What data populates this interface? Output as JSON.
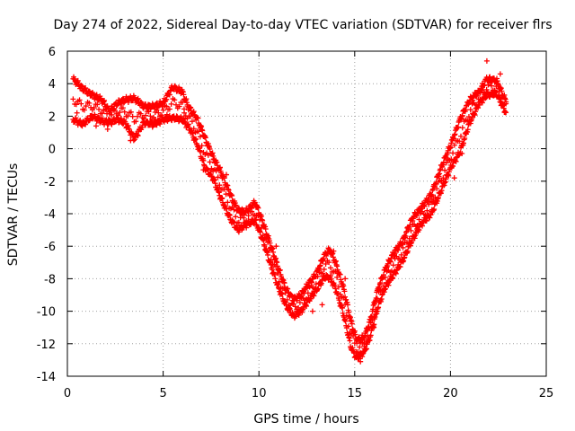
{
  "chart_data": {
    "type": "scatter",
    "title": "Day 274 of 2022, Sidereal Day-to-day VTEC variation (SDTVAR) for receiver flrs",
    "xlabel": "GPS time / hours",
    "ylabel": "SDTVAR / TECUs",
    "xlim": [
      0,
      25
    ],
    "ylim": [
      -14,
      6
    ],
    "xticks": [
      0,
      5,
      10,
      15,
      20,
      25
    ],
    "yticks": [
      -14,
      -12,
      -10,
      -8,
      -6,
      -4,
      -2,
      0,
      2,
      4,
      6
    ],
    "grid": true,
    "marker": "+",
    "series": [
      {
        "name": "SDTVAR",
        "color": "#ff0000",
        "upper": [
          [
            0.3,
            4.3
          ],
          [
            0.8,
            3.7
          ],
          [
            1.3,
            3.3
          ],
          [
            1.8,
            3.0
          ],
          [
            2.2,
            2.3
          ],
          [
            2.6,
            2.8
          ],
          [
            3.0,
            3.0
          ],
          [
            3.5,
            3.1
          ],
          [
            4.0,
            2.6
          ],
          [
            4.5,
            2.6
          ],
          [
            5.0,
            2.8
          ],
          [
            5.5,
            3.8
          ],
          [
            6.0,
            3.5
          ],
          [
            6.3,
            2.6
          ],
          [
            6.8,
            1.8
          ],
          [
            7.2,
            0.6
          ],
          [
            7.6,
            -0.5
          ],
          [
            8.0,
            -1.4
          ],
          [
            8.5,
            -2.8
          ],
          [
            8.9,
            -3.8
          ],
          [
            9.3,
            -3.9
          ],
          [
            9.8,
            -3.3
          ],
          [
            10.2,
            -4.5
          ],
          [
            10.6,
            -5.9
          ],
          [
            11.0,
            -7.3
          ],
          [
            11.4,
            -8.6
          ],
          [
            11.8,
            -9.3
          ],
          [
            12.2,
            -9.0
          ],
          [
            12.6,
            -8.3
          ],
          [
            13.0,
            -7.7
          ],
          [
            13.4,
            -6.6
          ],
          [
            13.7,
            -6.2
          ],
          [
            14.0,
            -7.0
          ],
          [
            14.4,
            -8.5
          ],
          [
            14.8,
            -10.6
          ],
          [
            15.1,
            -11.8
          ],
          [
            15.5,
            -11.6
          ],
          [
            15.8,
            -10.6
          ],
          [
            16.2,
            -8.7
          ],
          [
            16.6,
            -7.4
          ],
          [
            17.0,
            -6.5
          ],
          [
            17.5,
            -5.7
          ],
          [
            18.0,
            -4.3
          ],
          [
            18.5,
            -3.6
          ],
          [
            19.0,
            -2.8
          ],
          [
            19.5,
            -1.2
          ],
          [
            20.0,
            0.2
          ],
          [
            20.5,
            1.8
          ],
          [
            21.0,
            3.0
          ],
          [
            21.5,
            3.5
          ],
          [
            21.9,
            4.3
          ],
          [
            22.4,
            4.2
          ],
          [
            22.9,
            2.9
          ]
        ],
        "lower": [
          [
            0.3,
            1.8
          ],
          [
            0.8,
            1.5
          ],
          [
            1.3,
            2.0
          ],
          [
            1.8,
            1.7
          ],
          [
            2.2,
            1.6
          ],
          [
            2.6,
            1.8
          ],
          [
            3.0,
            1.6
          ],
          [
            3.5,
            0.6
          ],
          [
            4.0,
            1.6
          ],
          [
            4.5,
            1.5
          ],
          [
            5.0,
            1.8
          ],
          [
            5.5,
            1.9
          ],
          [
            6.0,
            1.8
          ],
          [
            6.4,
            1.2
          ],
          [
            6.8,
            0.2
          ],
          [
            7.2,
            -1.2
          ],
          [
            7.6,
            -1.8
          ],
          [
            8.0,
            -3.0
          ],
          [
            8.5,
            -4.3
          ],
          [
            8.9,
            -5.0
          ],
          [
            9.3,
            -4.7
          ],
          [
            9.8,
            -4.4
          ],
          [
            10.2,
            -5.6
          ],
          [
            10.6,
            -7.1
          ],
          [
            11.0,
            -8.5
          ],
          [
            11.4,
            -9.6
          ],
          [
            11.8,
            -10.3
          ],
          [
            12.2,
            -10.0
          ],
          [
            12.6,
            -9.3
          ],
          [
            13.0,
            -8.7
          ],
          [
            13.4,
            -7.9
          ],
          [
            13.7,
            -7.9
          ],
          [
            14.0,
            -8.6
          ],
          [
            14.4,
            -10.1
          ],
          [
            14.8,
            -12.2
          ],
          [
            15.1,
            -12.9
          ],
          [
            15.5,
            -12.5
          ],
          [
            15.8,
            -11.6
          ],
          [
            16.2,
            -9.8
          ],
          [
            16.6,
            -8.5
          ],
          [
            17.0,
            -7.8
          ],
          [
            17.5,
            -6.9
          ],
          [
            18.0,
            -5.6
          ],
          [
            18.5,
            -4.6
          ],
          [
            19.0,
            -4.0
          ],
          [
            19.5,
            -2.6
          ],
          [
            20.0,
            -1.2
          ],
          [
            20.5,
            -0.2
          ],
          [
            21.0,
            1.6
          ],
          [
            21.5,
            2.8
          ],
          [
            21.9,
            3.3
          ],
          [
            22.4,
            3.4
          ],
          [
            22.9,
            2.2
          ]
        ],
        "outliers": [
          [
            0.5,
            2.2
          ],
          [
            1.5,
            1.4
          ],
          [
            2.1,
            1.2
          ],
          [
            3.3,
            0.5
          ],
          [
            4.6,
            1.8
          ],
          [
            5.2,
            2.1
          ],
          [
            6.1,
            2.2
          ],
          [
            7.1,
            -1.3
          ],
          [
            8.3,
            -1.6
          ],
          [
            9.9,
            -3.6
          ],
          [
            10.9,
            -6.0
          ],
          [
            11.6,
            -9.9
          ],
          [
            12.8,
            -10.0
          ],
          [
            13.3,
            -9.6
          ],
          [
            13.9,
            -6.3
          ],
          [
            14.5,
            -8.0
          ],
          [
            15.3,
            -13.1
          ],
          [
            16.0,
            -11.0
          ],
          [
            16.7,
            -8.3
          ],
          [
            18.2,
            -4.1
          ],
          [
            19.1,
            -3.1
          ],
          [
            20.2,
            -1.8
          ],
          [
            20.6,
            -0.3
          ],
          [
            21.3,
            3.4
          ],
          [
            21.9,
            5.4
          ],
          [
            22.6,
            4.6
          ]
        ]
      }
    ]
  }
}
